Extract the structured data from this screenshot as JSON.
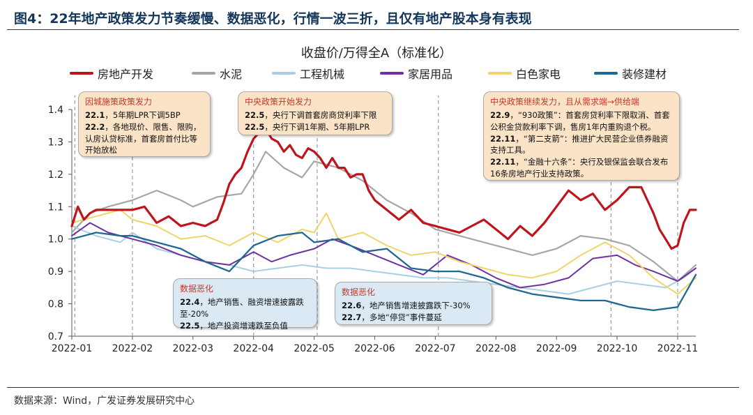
{
  "figure_title": "图4：22年地产政策发力节奏缓慢、数据恶化，行情一波三折，且仅有地产股本身有表现",
  "source": "数据来源：Wind，广发证券发展研究中心",
  "colors": {
    "real_estate": "#c0141c",
    "cement": "#a6a6a6",
    "machinery": "#a9cfe6",
    "furniture": "#7030a0",
    "appliance": "#f0d46a",
    "decoration": "#1f6891"
  },
  "legend": [
    {
      "label": "房地产开发",
      "color": "#c0141c"
    },
    {
      "label": "水泥",
      "color": "#a6a6a6"
    },
    {
      "label": "工程机械",
      "color": "#a9cfe6"
    },
    {
      "label": "家居用品",
      "color": "#7030a0"
    },
    {
      "label": "白色家电",
      "color": "#f0d46a"
    },
    {
      "label": "装修建材",
      "color": "#1f6891"
    }
  ],
  "annotations": [
    {
      "id": "a1",
      "style": "orange",
      "head": "因城施策政策发力",
      "lines": [
        {
          "b": "22.1",
          "t": "，5年期LPR下调5BP"
        },
        {
          "b": "22.2",
          "t": "，各地现价、限售、限购，认房认贷标准，首套房首付比等开始放松"
        }
      ]
    },
    {
      "id": "a2",
      "style": "orange",
      "head": "中央政策开始发力",
      "lines": [
        {
          "b": "22.5",
          "t": "，央行下调首套房商贷利率下限"
        },
        {
          "b": "22.5",
          "t": "，央行下调1年期、5年期LPR"
        }
      ]
    },
    {
      "id": "a3",
      "style": "orange",
      "head": "中央政策继续发力，且从需求端→供给端",
      "lines": [
        {
          "b": "22.9",
          "t": "，“930政策”：首套房贷利率下限取消、首套公积金贷款利率下调，售房1年内重购退个税。"
        },
        {
          "b": "22.11",
          "t": "，“第二支箭”：推进扩大民营企业债券融资支持工具。"
        },
        {
          "b": "22.11",
          "t": "，“金融十六条”：央行及银保监会联合发布16条房地产行业支持政策。"
        }
      ]
    },
    {
      "id": "a4",
      "style": "blue",
      "head": "数据恶化",
      "lines": [
        {
          "b": "22.4",
          "t": "，地产销售、融资增速披露跌至-20%"
        },
        {
          "b": "22.5",
          "t": "，地产投资增速跌至负值"
        }
      ]
    },
    {
      "id": "a5",
      "style": "blue",
      "head": "数据恶化",
      "lines": [
        {
          "b": "22.6",
          "t": "，地产销售增速披露跌下-30%"
        },
        {
          "b": "22.7",
          "t": "，多地“停贷”事件蔓延"
        }
      ]
    }
  ],
  "chart_data": {
    "type": "line",
    "title": "收盘价/万得全A（标准化）",
    "xlabel": "",
    "ylabel": "",
    "x_domain": [
      0,
      10.3
    ],
    "ylim": [
      0.7,
      1.4
    ],
    "yticks": [
      0.7,
      0.8,
      0.9,
      1.0,
      1.1,
      1.2,
      1.3,
      1.4
    ],
    "ytick_labels": [
      "0.7",
      "0.8",
      "0.9",
      "1.0",
      "1.1",
      "1.2",
      "1.3",
      "1.4"
    ],
    "xticks": [
      0,
      1,
      2,
      3,
      4,
      5,
      6,
      7,
      8,
      9,
      10
    ],
    "xtick_labels": [
      "2022-01",
      "2022-02",
      "2022-03",
      "2022-04",
      "2022-05",
      "2022-06",
      "2022-07",
      "2022-08",
      "2022-09",
      "2022-10",
      "2022-11"
    ],
    "event_lines_x": [
      0.05,
      1.0,
      3.0,
      4.05,
      6.05,
      8.9,
      10.0
    ],
    "series": [
      {
        "name": "房地产开发",
        "color": "#c0141c",
        "width": 3.2,
        "x": [
          0,
          0.1,
          0.2,
          0.3,
          0.4,
          0.5,
          0.6,
          0.8,
          1.0,
          1.2,
          1.4,
          1.6,
          1.8,
          2.0,
          2.2,
          2.4,
          2.5,
          2.6,
          2.7,
          2.8,
          2.9,
          3.0,
          3.1,
          3.2,
          3.3,
          3.4,
          3.5,
          3.6,
          3.7,
          3.8,
          3.9,
          4.0,
          4.1,
          4.2,
          4.3,
          4.4,
          4.5,
          4.6,
          4.7,
          4.8,
          4.9,
          5.0,
          5.2,
          5.4,
          5.6,
          5.8,
          6.0,
          6.2,
          6.4,
          6.6,
          6.8,
          7.0,
          7.2,
          7.4,
          7.6,
          7.8,
          8.0,
          8.2,
          8.4,
          8.6,
          8.8,
          9.0,
          9.2,
          9.4,
          9.5,
          9.6,
          9.7,
          9.8,
          9.9,
          10.0,
          10.1,
          10.2,
          10.3
        ],
        "values": [
          1.04,
          1.1,
          1.06,
          1.08,
          1.09,
          1.09,
          1.09,
          1.09,
          1.09,
          1.1,
          1.05,
          1.07,
          1.04,
          1.05,
          1.04,
          1.06,
          1.11,
          1.17,
          1.2,
          1.22,
          1.27,
          1.31,
          1.33,
          1.34,
          1.31,
          1.3,
          1.27,
          1.29,
          1.26,
          1.25,
          1.28,
          1.27,
          1.25,
          1.22,
          1.25,
          1.22,
          1.22,
          1.19,
          1.2,
          1.2,
          1.15,
          1.12,
          1.09,
          1.06,
          1.09,
          1.05,
          1.04,
          1.03,
          1.02,
          1.04,
          1.06,
          1.03,
          1.0,
          1.04,
          1.01,
          1.05,
          1.1,
          1.15,
          1.12,
          1.14,
          1.09,
          1.12,
          1.16,
          1.16,
          1.12,
          1.08,
          1.03,
          1.0,
          0.97,
          0.98,
          1.05,
          1.09,
          1.09
        ]
      },
      {
        "name": "水泥",
        "color": "#a6a6a6",
        "width": 2.2,
        "x": [
          0,
          0.3,
          0.6,
          1.0,
          1.4,
          1.8,
          2.0,
          2.4,
          2.8,
          3.0,
          3.2,
          3.5,
          3.8,
          4.0,
          4.4,
          4.8,
          5.2,
          5.6,
          6.0,
          6.4,
          6.8,
          7.2,
          7.6,
          8.0,
          8.4,
          8.8,
          9.2,
          9.6,
          10.0,
          10.3
        ],
        "values": [
          1.02,
          1.08,
          1.1,
          1.12,
          1.15,
          1.12,
          1.1,
          1.13,
          1.14,
          1.2,
          1.27,
          1.22,
          1.19,
          1.24,
          1.22,
          1.18,
          1.12,
          1.08,
          1.03,
          1.01,
          0.99,
          0.97,
          0.95,
          0.97,
          1.01,
          1.0,
          0.98,
          0.93,
          0.87,
          0.92
        ]
      },
      {
        "name": "工程机械",
        "color": "#a9cfe6",
        "width": 2.0,
        "x": [
          0,
          0.4,
          0.8,
          1.0,
          1.4,
          1.8,
          2.2,
          2.6,
          3.0,
          3.4,
          3.8,
          4.2,
          4.6,
          5.0,
          5.4,
          5.8,
          6.2,
          6.6,
          7.0,
          7.4,
          7.8,
          8.2,
          8.6,
          9.0,
          9.4,
          9.8,
          10.1,
          10.3
        ],
        "values": [
          1.04,
          1.01,
          0.99,
          1.02,
          0.97,
          0.95,
          0.93,
          0.92,
          0.9,
          0.91,
          0.92,
          0.91,
          0.91,
          0.9,
          0.89,
          0.88,
          0.88,
          0.87,
          0.86,
          0.85,
          0.84,
          0.83,
          0.85,
          0.87,
          0.86,
          0.85,
          0.88,
          0.91
        ]
      },
      {
        "name": "家居用品",
        "color": "#7030a0",
        "width": 2.0,
        "x": [
          0,
          0.3,
          0.6,
          1.0,
          1.4,
          1.8,
          2.2,
          2.6,
          3.0,
          3.3,
          3.6,
          4.0,
          4.3,
          4.6,
          5.0,
          5.4,
          5.8,
          6.2,
          6.6,
          7.0,
          7.4,
          7.8,
          8.2,
          8.6,
          9.0,
          9.3,
          9.6,
          10.0,
          10.3
        ],
        "values": [
          1.01,
          1.05,
          1.02,
          1.0,
          0.98,
          0.95,
          0.93,
          0.92,
          0.96,
          0.93,
          0.95,
          0.97,
          1.0,
          0.98,
          0.95,
          0.92,
          0.89,
          0.95,
          0.92,
          0.88,
          0.85,
          0.86,
          0.88,
          0.94,
          0.95,
          0.92,
          0.9,
          0.87,
          0.91
        ]
      },
      {
        "name": "白色家电",
        "color": "#f0d46a",
        "width": 2.0,
        "x": [
          0,
          0.4,
          0.8,
          1.0,
          1.4,
          1.8,
          2.2,
          2.6,
          3.0,
          3.4,
          3.8,
          4.0,
          4.2,
          4.4,
          4.8,
          5.2,
          5.6,
          6.0,
          6.4,
          6.8,
          7.2,
          7.6,
          8.0,
          8.4,
          8.8,
          9.2,
          9.6,
          10.0,
          10.3
        ],
        "values": [
          1.05,
          1.07,
          1.09,
          1.06,
          1.04,
          1.0,
          1.01,
          0.98,
          1.02,
          0.99,
          1.03,
          1.02,
          1.08,
          1.0,
          1.02,
          0.98,
          0.95,
          0.96,
          0.93,
          0.91,
          0.89,
          0.88,
          0.9,
          0.95,
          0.99,
          0.95,
          0.88,
          0.83,
          0.88
        ]
      },
      {
        "name": "装修建材",
        "color": "#1f6891",
        "width": 2.3,
        "x": [
          0,
          0.4,
          0.8,
          1.0,
          1.4,
          1.8,
          2.2,
          2.6,
          3.0,
          3.4,
          3.8,
          4.0,
          4.4,
          4.8,
          5.2,
          5.6,
          6.0,
          6.4,
          6.8,
          7.2,
          7.6,
          8.0,
          8.4,
          8.8,
          9.2,
          9.6,
          10.0,
          10.3
        ],
        "values": [
          1.0,
          1.02,
          1.01,
          1.01,
          0.99,
          0.97,
          0.93,
          0.9,
          0.98,
          1.01,
          1.02,
          0.99,
          1.0,
          0.96,
          0.97,
          0.91,
          0.9,
          0.9,
          0.88,
          0.85,
          0.83,
          0.82,
          0.81,
          0.81,
          0.79,
          0.78,
          0.79,
          0.89
        ]
      }
    ]
  }
}
